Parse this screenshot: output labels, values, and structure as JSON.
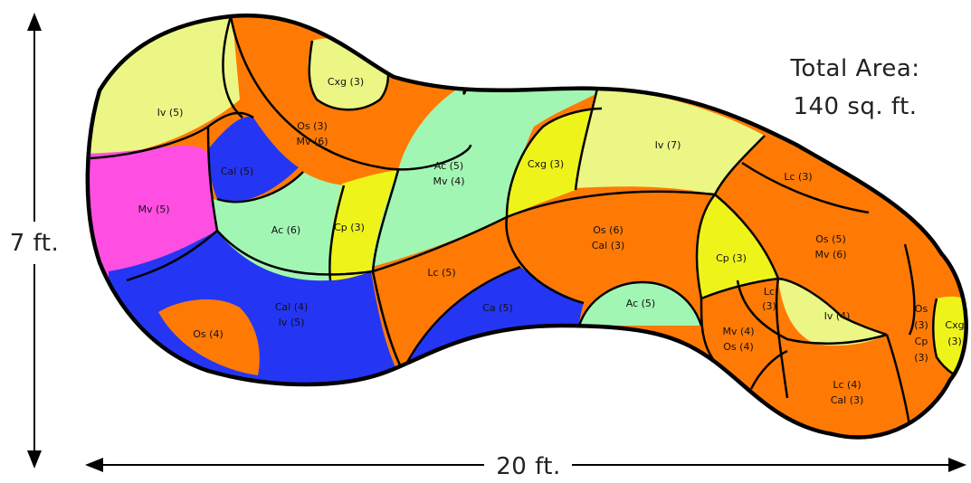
{
  "title": {
    "line1": "Total Area:",
    "line2": "140 sq. ft."
  },
  "dimensions": {
    "height": "7 ft.",
    "width": "20 ft."
  },
  "colors": {
    "orange": "#ff7a05",
    "light_yellow_green": "#ecf684",
    "yellow": "#eef41a",
    "blue": "#2436f3",
    "mint": "#a2f6b3",
    "magenta": "#ff4fe3",
    "outline": "#000000"
  },
  "regions": [
    {
      "id": "iv-5-top",
      "label": "Iv (5)"
    },
    {
      "id": "os-3-mv-6",
      "label": [
        "Os (3)",
        "Mv (6)"
      ]
    },
    {
      "id": "cxg-3-top",
      "label": "Cxg (3)"
    },
    {
      "id": "cal-5",
      "label": "Cal (5)"
    },
    {
      "id": "mv-5",
      "label": "Mv (5)"
    },
    {
      "id": "ac-6",
      "label": "Ac (6)"
    },
    {
      "id": "cp-3-left",
      "label": "Cp (3)"
    },
    {
      "id": "ac-5-mv-4",
      "label": [
        "Ac (5)",
        "Mv (4)"
      ]
    },
    {
      "id": "cxg-3-mid",
      "label": "Cxg (3)"
    },
    {
      "id": "iv-7",
      "label": "Iv (7)"
    },
    {
      "id": "lc-3-top",
      "label": "Lc (3)"
    },
    {
      "id": "os-4",
      "label": "Os (4)"
    },
    {
      "id": "cal-4-iv-5",
      "label": [
        "Cal (4)",
        "Iv (5)"
      ]
    },
    {
      "id": "lc-5",
      "label": "Lc (5)"
    },
    {
      "id": "ca-5",
      "label": "Ca (5)"
    },
    {
      "id": "os-6-cal-3",
      "label": [
        "Os (6)",
        "Cal (3)"
      ]
    },
    {
      "id": "ac-5-bottom",
      "label": "Ac (5)"
    },
    {
      "id": "cp-3-right",
      "label": "Cp (3)"
    },
    {
      "id": "os-5-mv-6",
      "label": [
        "Os (5)",
        "Mv (6)"
      ]
    },
    {
      "id": "lc-3-mid",
      "label": [
        "Lc",
        "(3)"
      ]
    },
    {
      "id": "iv-4",
      "label": "Iv (4)"
    },
    {
      "id": "mv-4-os-4",
      "label": [
        "Mv (4)",
        "Os (4)"
      ]
    },
    {
      "id": "lc-4-cal-3",
      "label": [
        "Lc (4)",
        "Cal (3)"
      ]
    },
    {
      "id": "os-3-cp-3",
      "label": [
        "Os",
        "(3)",
        "Cp",
        "(3)"
      ]
    },
    {
      "id": "cxg-3-right",
      "label": [
        "Cxg",
        "(3)"
      ]
    }
  ]
}
